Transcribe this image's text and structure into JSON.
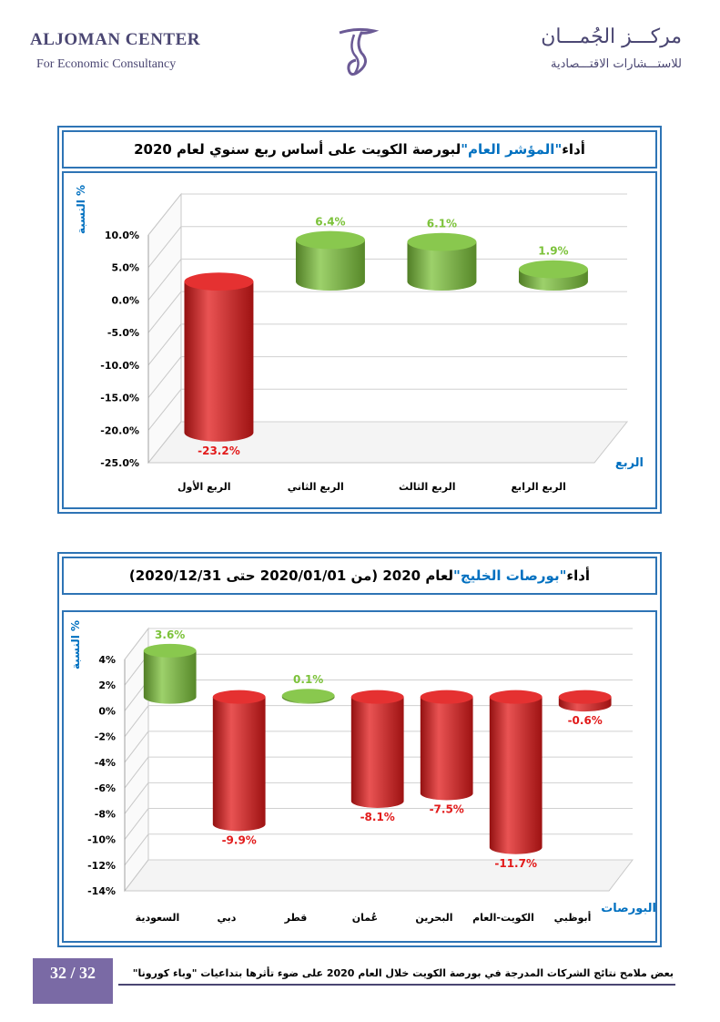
{
  "header": {
    "company_en": "ALJOMAN CENTER",
    "tagline_en": "For Economic Consultancy",
    "company_ar": "مركـــز الجُمـــان",
    "tagline_ar": "للاستـــشارات الاقتـــصادية"
  },
  "colors": {
    "positive": "#7cc23a",
    "negative": "#e21a1a",
    "frame": "#2e74b5",
    "accent": "#4a4672"
  },
  "chart1": {
    "title_prefix": "أداء ",
    "title_highlight": "\"المؤشر العام\"",
    "title_suffix": " لبورصة الكويت على أساس ربع سنوي لعام 2020",
    "ylabel": "النسبة %",
    "xlabel": "الربع"
  },
  "chart2": {
    "title_prefix": "أداء ",
    "title_highlight": "\"بورصات الخليج\"",
    "title_suffix": " لعام 2020 (من 2020/01/01 حتى 2020/12/31)",
    "ylabel": "النسبة %",
    "xlabel": "البورصات"
  },
  "chart_data": [
    {
      "type": "bar",
      "title": "أداء \"المؤشر العام\" لبورصة الكويت على أساس ربع سنوي لعام 2020",
      "xlabel": "الربع",
      "ylabel": "النسبة %",
      "categories": [
        "الربع الأول",
        "الربع الثاني",
        "الربع الثالث",
        "الربع الرابع"
      ],
      "values": [
        -23.2,
        6.4,
        6.1,
        1.9
      ],
      "value_labels": [
        "-23.2%",
        "6.4%",
        "6.1%",
        "1.9%"
      ],
      "ylim": [
        -25,
        10
      ],
      "yticks": [
        10,
        5,
        0,
        -5,
        -10,
        -15,
        -20,
        -25
      ],
      "ytick_labels": [
        "10.0%",
        "5.0%",
        "0.0%",
        "-5.0%",
        "-10.0%",
        "-15.0%",
        "-20.0%",
        "-25.0%"
      ],
      "grid": true
    },
    {
      "type": "bar",
      "title": "أداء \"بورصات الخليج\" لعام 2020 (من 2020/01/01 حتى 2020/12/31)",
      "xlabel": "البورصات",
      "ylabel": "النسبة %",
      "categories": [
        "السعودية",
        "دبي",
        "قطر",
        "عُمان",
        "البحرين",
        "الكويت-العام",
        "أبوظبي"
      ],
      "values": [
        3.6,
        -9.9,
        0.1,
        -8.1,
        -7.5,
        -11.7,
        -0.6
      ],
      "value_labels": [
        "3.6%",
        "-9.9%",
        "0.1%",
        "-8.1%",
        "-7.5%",
        "-11.7%",
        "-0.6%"
      ],
      "ylim": [
        -14,
        4
      ],
      "yticks": [
        4,
        2,
        0,
        -2,
        -4,
        -6,
        -8,
        -10,
        -12,
        -14
      ],
      "ytick_labels": [
        "4%",
        "2%",
        "0%",
        "-2%",
        "-4%",
        "-6%",
        "-8%",
        "-10%",
        "-12%",
        "-14%"
      ],
      "grid": true
    }
  ],
  "footer": {
    "page": "32 / 32",
    "text": "بعض ملامح نتائج الشركات المدرجة في بورصة الكويت خلال العام 2020 على ضوء تأثرها بتداعيات \"وباء كورونا\""
  }
}
